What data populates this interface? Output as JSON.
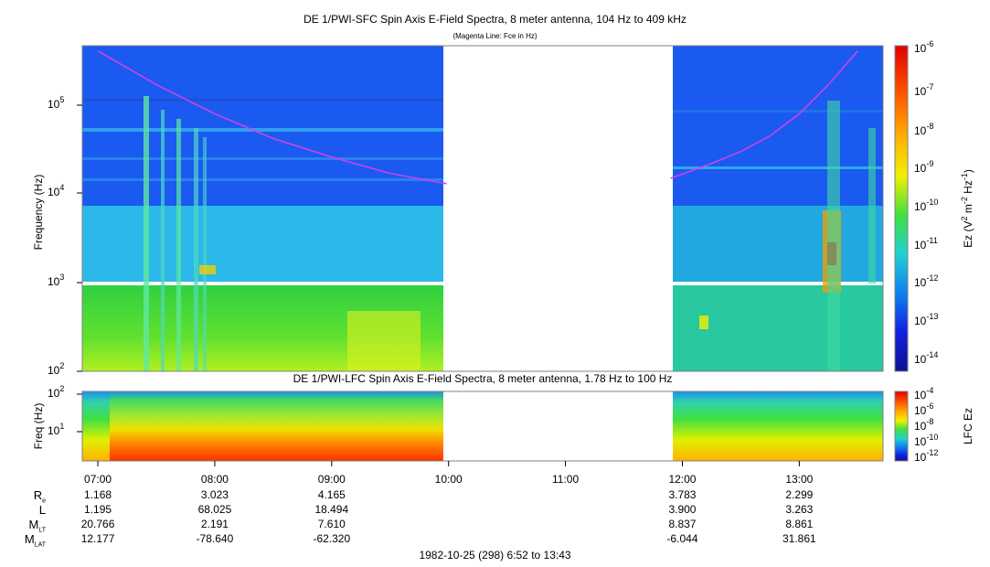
{
  "titles": {
    "main": "DE 1/PWI-SFC  Spin Axis E-Field Spectra, 8 meter antenna, 104 Hz to 409 kHz",
    "sub": "(Magenta Line: Fce in Hz)",
    "lower": "DE 1/PWI-LFC  Spin Axis E-Field Spectra, 8 meter antenna, 1.78 Hz to 100 Hz",
    "footer": "1982-10-25 (298) 6:52 to 13:43"
  },
  "colors": {
    "background_blue": "#1a5af0",
    "data_gap": "#ffffff",
    "fce_line": "#d040e8",
    "low_freq_green": "#30d040"
  },
  "chart_data": [
    {
      "type": "heatmap",
      "title": "DE 1/PWI-SFC  Spin Axis E-Field Spectra, 8 meter antenna, 104 Hz to 409 kHz",
      "subtitle": "(Magenta Line: Fce in Hz)",
      "ylabel": "Frequency (Hz)",
      "yscale": "log",
      "ylim": [
        100,
        409000
      ],
      "yticks": [
        "10^2",
        "10^3",
        "10^4",
        "10^5"
      ],
      "xlim": [
        "06:52",
        "13:43"
      ],
      "colorbar": {
        "label": "Ez (V^2 m^-2 Hz^-1)",
        "scale": "log",
        "range": [
          3e-15,
          1e-06
        ],
        "ticks": [
          "10^-6",
          "10^-7",
          "10^-8",
          "10^-9",
          "10^-10",
          "10^-11",
          "10^-12",
          "10^-13",
          "10^-14"
        ]
      },
      "data_gap": [
        "09:59",
        "11:54"
      ],
      "fce_line": {
        "name": "Fce in Hz",
        "segments": [
          [
            [
              "07:00",
              409000
            ],
            [
              "07:30",
              170000
            ],
            [
              "08:00",
              80000
            ],
            [
              "08:30",
              42000
            ],
            [
              "09:00",
              26000
            ],
            [
              "09:30",
              17000
            ],
            [
              "09:59",
              13000
            ]
          ],
          [
            [
              "11:54",
              15000
            ],
            [
              "12:15",
              22000
            ],
            [
              "12:30",
              30000
            ],
            [
              "12:45",
              45000
            ],
            [
              "13:00",
              80000
            ],
            [
              "13:15",
              170000
            ],
            [
              "13:30",
              409000
            ]
          ]
        ]
      },
      "grid": false
    },
    {
      "type": "heatmap",
      "title": "DE 1/PWI-LFC  Spin Axis E-Field Spectra, 8 meter antenna, 1.78 Hz to 100 Hz",
      "ylabel": "Freq (Hz)",
      "yscale": "log",
      "ylim": [
        1.78,
        100
      ],
      "yticks": [
        "10^1",
        "10^2"
      ],
      "xlim": [
        "06:52",
        "13:43"
      ],
      "xticks": [
        "07:00",
        "08:00",
        "09:00",
        "10:00",
        "11:00",
        "12:00",
        "13:00"
      ],
      "colorbar": {
        "label": "LFC Ez",
        "scale": "log",
        "range": [
          1e-12,
          0.0001
        ],
        "ticks": [
          "10^-4",
          "10^-6",
          "10^-8",
          "10^-10",
          "10^-12"
        ]
      },
      "data_gap": [
        "09:59",
        "11:54"
      ],
      "grid": false
    }
  ],
  "ephemeris": {
    "labels": [
      "R",
      "L",
      "M",
      "M"
    ],
    "subs": [
      "e",
      "",
      "LT",
      "LAT"
    ],
    "columns": [
      {
        "time": "07:00",
        "values": [
          "1.168",
          "1.195",
          "20.766",
          "12.177"
        ]
      },
      {
        "time": "08:00",
        "values": [
          "3.023",
          "68.025",
          "2.191",
          "-78.640"
        ]
      },
      {
        "time": "09:00",
        "values": [
          "4.165",
          "18.494",
          "7.610",
          "-62.320"
        ]
      },
      {
        "time": "12:00",
        "values": [
          "3.783",
          "3.900",
          "8.837",
          "-6.044"
        ]
      },
      {
        "time": "13:00",
        "values": [
          "2.299",
          "3.263",
          "8.861",
          "31.861"
        ]
      }
    ]
  }
}
